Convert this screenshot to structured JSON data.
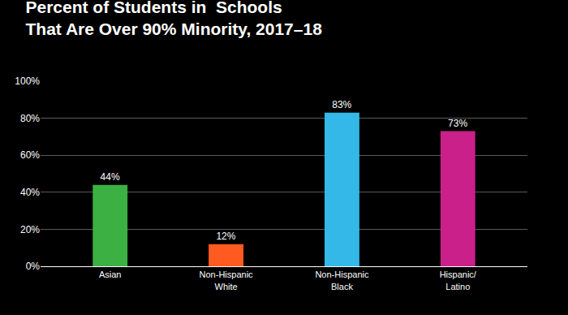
{
  "chart_data": {
    "type": "bar",
    "title": "Percent of Students in  Schools\nThat Are Over 90% Minority, 2017–18",
    "categories": [
      "Asian",
      "Non-Hispanic\nWhite",
      "Non-Hispanic\nBlack",
      "Hispanic/\nLatino"
    ],
    "values": [
      44,
      12,
      83,
      73
    ],
    "value_labels": [
      "44%",
      "12%",
      "83%",
      "73%"
    ],
    "colors": [
      "#3cb043",
      "#ff5a1f",
      "#33b8e8",
      "#c9208a"
    ],
    "data_labels": true,
    "ylim": [
      0,
      100
    ],
    "yticks": [
      {
        "value": 0,
        "label": "0%"
      },
      {
        "value": 20,
        "label": "20%"
      },
      {
        "value": 40,
        "label": "40%"
      },
      {
        "value": 60,
        "label": "60%"
      },
      {
        "value": 80,
        "label": "80%"
      },
      {
        "value": 100,
        "label": "100%"
      }
    ],
    "grid": true
  }
}
